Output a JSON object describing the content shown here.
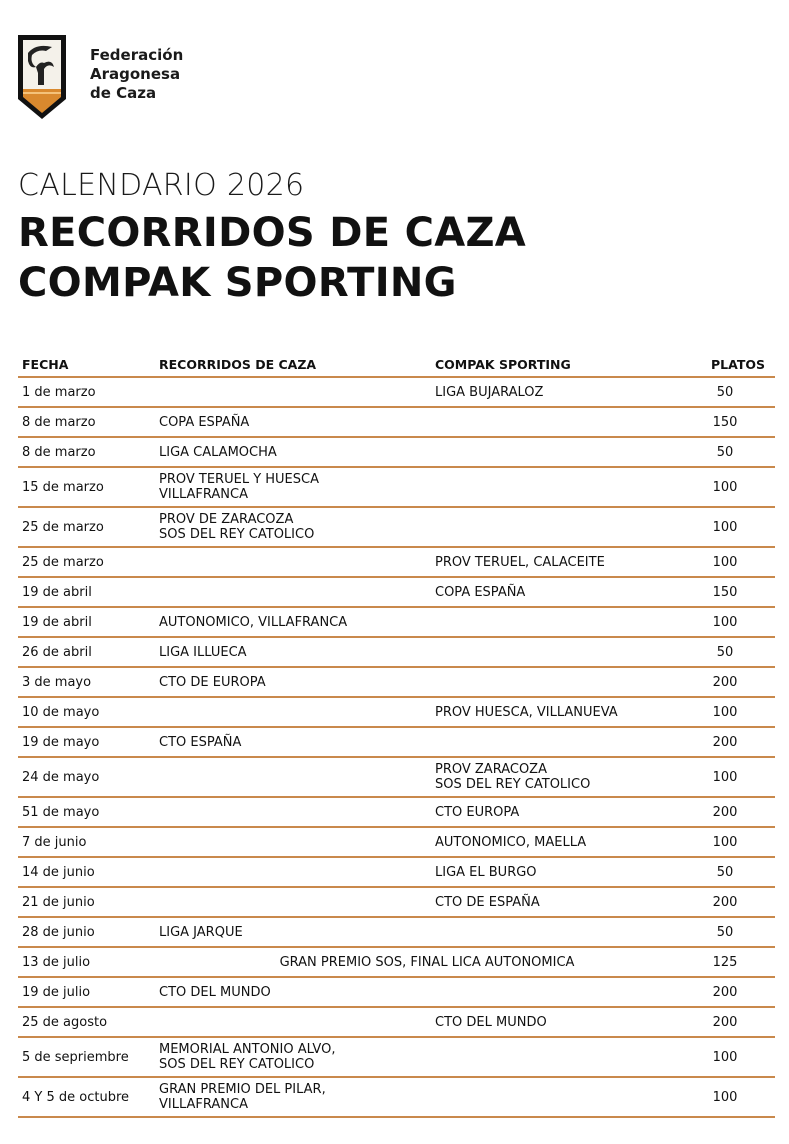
{
  "org": {
    "lines": [
      "Federación",
      "Aragonesa",
      "de Caza"
    ],
    "logo": "shield-ibex-emblem"
  },
  "kicker": "CALENDARIO 2026",
  "title_lines": [
    "RECORRIDOS DE CAZA",
    "COMPAK SPORTING"
  ],
  "colors": {
    "rule": "#c9894c",
    "text": "#111111"
  },
  "table": {
    "headers": [
      "FECHA",
      "RECORRIDOS DE CAZA",
      "COMPAK SPORTING",
      "PLATOS"
    ],
    "rows": [
      {
        "fecha": "1 de marzo",
        "recorridos": "",
        "compak": "LIGA BUJARALOZ",
        "platos": "50"
      },
      {
        "fecha": "8 de marzo",
        "recorridos": "COPA ESPAÑA",
        "compak": "",
        "platos": "150"
      },
      {
        "fecha": "8 de marzo",
        "recorridos": "LIGA CALAMOCHA",
        "compak": "",
        "platos": "50"
      },
      {
        "fecha": "15 de marzo",
        "recorridos": "PROV TERUEL Y HUESCA\nVILLAFRANCA",
        "compak": "",
        "platos": "100"
      },
      {
        "fecha": "25 de marzo",
        "recorridos": "PROV DE ZARACOZA\nSOS DEL REY CATOLICO",
        "compak": "",
        "platos": "100"
      },
      {
        "fecha": "25 de marzo",
        "recorridos": "",
        "compak": "PROV TERUEL, CALACEITE",
        "platos": "100"
      },
      {
        "fecha": "19 de abril",
        "recorridos": "",
        "compak": "COPA ESPAÑA",
        "platos": "150"
      },
      {
        "fecha": "19 de abril",
        "recorridos": "AUTONOMICO, VILLAFRANCA",
        "compak": "",
        "platos": "100"
      },
      {
        "fecha": "26 de abril",
        "recorridos": "LIGA ILLUECA",
        "compak": "",
        "platos": "50"
      },
      {
        "fecha": "3 de mayo",
        "recorridos": "CTO DE EUROPA",
        "compak": "",
        "platos": "200"
      },
      {
        "fecha": "10 de mayo",
        "recorridos": "",
        "compak": "PROV HUESCA, VILLANUEVA",
        "platos": "100"
      },
      {
        "fecha": "19 de mayo",
        "recorridos": "CTO ESPAÑA",
        "compak": "",
        "platos": "200"
      },
      {
        "fecha": "24 de mayo",
        "recorridos": "",
        "compak": "PROV ZARACOZA\nSOS DEL REY CATOLICO",
        "platos": "100"
      },
      {
        "fecha": "51 de mayo",
        "recorridos": "",
        "compak": "CTO EUROPA",
        "platos": "200"
      },
      {
        "fecha": "7 de junio",
        "recorridos": "",
        "compak": "AUTONOMICO, MAELLA",
        "platos": "100"
      },
      {
        "fecha": "14 de junio",
        "recorridos": "",
        "compak": "LIGA EL BURGO",
        "platos": "50"
      },
      {
        "fecha": "21 de junio",
        "recorridos": "",
        "compak": "CTO DE ESPAÑA",
        "platos": "200"
      },
      {
        "fecha": "28 de junio",
        "recorridos": "LIGA JARQUE",
        "compak": "",
        "platos": "50"
      },
      {
        "fecha": "13 de julio",
        "span": "GRAN PREMIO SOS, FINAL LICA AUTONOMICA",
        "platos": "125"
      },
      {
        "fecha": "19 de julio",
        "recorridos": "CTO DEL MUNDO",
        "compak": "",
        "platos": "200"
      },
      {
        "fecha": "25 de agosto",
        "recorridos": "",
        "compak": "CTO DEL MUNDO",
        "platos": "200"
      },
      {
        "fecha": "5 de sepriembre",
        "recorridos": "MEMORIAL ANTONIO ALVO,\nSOS DEL REY CATOLICO",
        "compak": "",
        "platos": "100"
      },
      {
        "fecha": "4 Y 5 de octubre",
        "recorridos": "GRAN PREMIO DEL PILAR,\nVILLAFRANCA",
        "compak": "",
        "platos": "100"
      }
    ]
  }
}
